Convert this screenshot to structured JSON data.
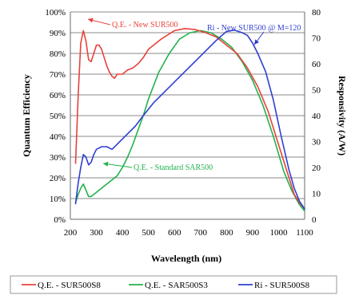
{
  "chart_data": {
    "type": "line",
    "xlabel": "Wavelength (nm)",
    "ylabel_left": "Quantum Efficiency",
    "ylabel_right": "Responsivity (A/W)",
    "xlim": [
      200,
      1100
    ],
    "ylim_left": [
      0,
      100
    ],
    "ylim_right": [
      0,
      80
    ],
    "x_ticks": [
      200,
      300,
      400,
      500,
      600,
      700,
      800,
      900,
      1000,
      1100
    ],
    "y_left_ticks": [
      "0%",
      "10%",
      "20%",
      "30%",
      "40%",
      "50%",
      "60%",
      "70%",
      "80%",
      "90%",
      "100%"
    ],
    "y_right_ticks": [
      0,
      10,
      20,
      30,
      40,
      50,
      60,
      70,
      80
    ],
    "grid": "horizontal",
    "legend_position": "bottom",
    "colors": {
      "red": "#e8423b",
      "green": "#22b24c",
      "blue": "#2f3fd0"
    },
    "series": [
      {
        "name": "Q.E. - SUR500S8",
        "axis": "left",
        "color": "#e8423b",
        "points": [
          [
            220,
            27
          ],
          [
            230,
            60
          ],
          [
            240,
            85
          ],
          [
            250,
            91
          ],
          [
            260,
            86
          ],
          [
            270,
            77
          ],
          [
            280,
            76
          ],
          [
            290,
            80
          ],
          [
            300,
            84
          ],
          [
            310,
            84
          ],
          [
            320,
            82
          ],
          [
            330,
            78
          ],
          [
            340,
            74
          ],
          [
            350,
            71
          ],
          [
            360,
            69
          ],
          [
            370,
            68
          ],
          [
            380,
            70
          ],
          [
            400,
            70
          ],
          [
            420,
            72
          ],
          [
            440,
            73
          ],
          [
            460,
            75
          ],
          [
            480,
            78
          ],
          [
            500,
            82
          ],
          [
            550,
            87
          ],
          [
            600,
            91
          ],
          [
            640,
            92
          ],
          [
            680,
            91.5
          ],
          [
            720,
            90
          ],
          [
            760,
            88
          ],
          [
            800,
            84
          ],
          [
            840,
            80
          ],
          [
            880,
            73
          ],
          [
            920,
            64
          ],
          [
            960,
            52
          ],
          [
            1000,
            36
          ],
          [
            1030,
            24
          ],
          [
            1060,
            12
          ],
          [
            1080,
            8
          ],
          [
            1100,
            5
          ]
        ]
      },
      {
        "name": "Q.E. - SAR500S3",
        "axis": "left",
        "color": "#22b24c",
        "points": [
          [
            220,
            8
          ],
          [
            230,
            12
          ],
          [
            240,
            15
          ],
          [
            250,
            17
          ],
          [
            260,
            14
          ],
          [
            270,
            11
          ],
          [
            280,
            11
          ],
          [
            290,
            12
          ],
          [
            300,
            13
          ],
          [
            310,
            14
          ],
          [
            320,
            15
          ],
          [
            330,
            16
          ],
          [
            340,
            17
          ],
          [
            350,
            18
          ],
          [
            360,
            19
          ],
          [
            380,
            21
          ],
          [
            400,
            25
          ],
          [
            420,
            30
          ],
          [
            440,
            36
          ],
          [
            460,
            43
          ],
          [
            480,
            50
          ],
          [
            500,
            58
          ],
          [
            540,
            71
          ],
          [
            580,
            80
          ],
          [
            620,
            87
          ],
          [
            660,
            90
          ],
          [
            700,
            91
          ],
          [
            740,
            90
          ],
          [
            780,
            87
          ],
          [
            820,
            83
          ],
          [
            860,
            76
          ],
          [
            900,
            67
          ],
          [
            940,
            55
          ],
          [
            980,
            40
          ],
          [
            1020,
            23
          ],
          [
            1050,
            14
          ],
          [
            1080,
            7
          ],
          [
            1100,
            4
          ]
        ]
      },
      {
        "name": "Ri - SUR500S8",
        "axis": "right",
        "color": "#2f3fd0",
        "points": [
          [
            220,
            6
          ],
          [
            230,
            14
          ],
          [
            240,
            20
          ],
          [
            250,
            25
          ],
          [
            260,
            24
          ],
          [
            270,
            21
          ],
          [
            280,
            22
          ],
          [
            290,
            25
          ],
          [
            300,
            27
          ],
          [
            320,
            28
          ],
          [
            340,
            28
          ],
          [
            360,
            27
          ],
          [
            380,
            29
          ],
          [
            400,
            31
          ],
          [
            420,
            33
          ],
          [
            450,
            36
          ],
          [
            480,
            40
          ],
          [
            520,
            45
          ],
          [
            560,
            49
          ],
          [
            600,
            53
          ],
          [
            640,
            57
          ],
          [
            680,
            61
          ],
          [
            720,
            65
          ],
          [
            760,
            69
          ],
          [
            800,
            72.5
          ],
          [
            830,
            73
          ],
          [
            860,
            72
          ],
          [
            880,
            71
          ],
          [
            900,
            68
          ],
          [
            920,
            64
          ],
          [
            950,
            57
          ],
          [
            980,
            46
          ],
          [
            1010,
            32
          ],
          [
            1040,
            19
          ],
          [
            1060,
            12
          ],
          [
            1080,
            7
          ],
          [
            1100,
            4
          ]
        ]
      }
    ],
    "annotations": [
      {
        "text": "Q.E. - New SUR500",
        "color": "#e8423b"
      },
      {
        "text": "Ri - New SUR500 @ M=120",
        "color": "#2f3fd0"
      },
      {
        "text": "Q.E. - Standard SAR500",
        "color": "#22b24c"
      }
    ]
  }
}
